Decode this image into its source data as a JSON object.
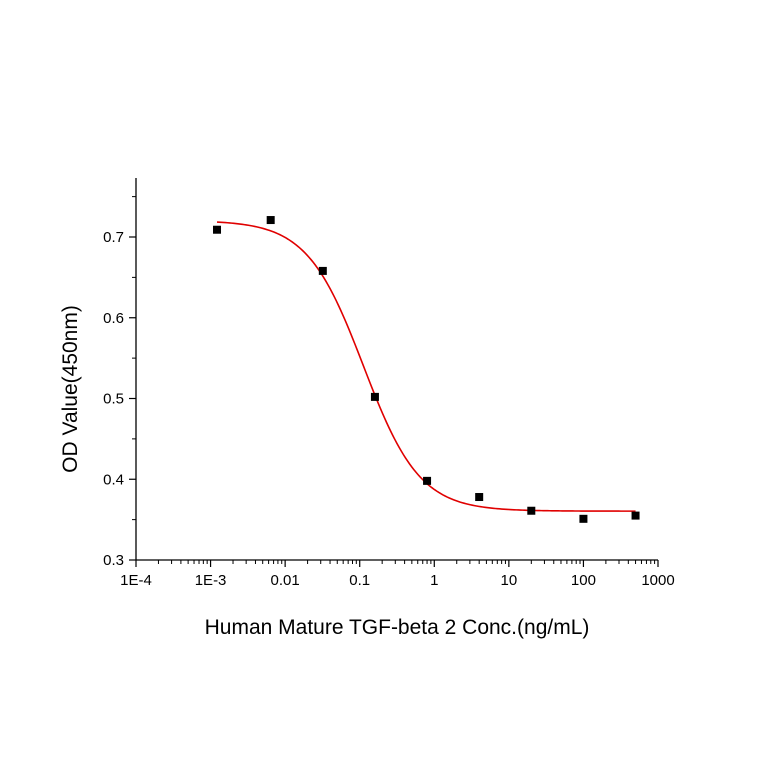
{
  "chart_data": {
    "type": "scatter",
    "title": "",
    "xlabel": "Human Mature TGF-beta 2 Conc.(ng/mL)",
    "ylabel": "OD Value(450nm)",
    "x_scale": "log",
    "xlim": [
      0.0001,
      1000
    ],
    "ylim": [
      0.3,
      0.75
    ],
    "x_ticks": [
      {
        "value": 0.0001,
        "label": "1E-4"
      },
      {
        "value": 0.001,
        "label": "1E-3"
      },
      {
        "value": 0.01,
        "label": "0.01"
      },
      {
        "value": 0.1,
        "label": "0.1"
      },
      {
        "value": 1,
        "label": "1"
      },
      {
        "value": 10,
        "label": "10"
      },
      {
        "value": 100,
        "label": "100"
      },
      {
        "value": 1000,
        "label": "1000"
      }
    ],
    "y_ticks": [
      {
        "value": 0.3,
        "label": "0.3"
      },
      {
        "value": 0.4,
        "label": "0.4"
      },
      {
        "value": 0.5,
        "label": "0.5"
      },
      {
        "value": 0.6,
        "label": "0.6"
      },
      {
        "value": 0.7,
        "label": "0.7"
      }
    ],
    "grid": false,
    "series": [
      {
        "type": "scatter",
        "marker": "square",
        "color": "#000000",
        "x": [
          0.00122,
          0.0064,
          0.032,
          0.16,
          0.8,
          4,
          20,
          100,
          500
        ],
        "y": [
          0.709,
          0.721,
          0.658,
          0.502,
          0.398,
          0.378,
          0.361,
          0.351,
          0.355
        ]
      },
      {
        "type": "line",
        "color": "#e00000",
        "fit": "4PL",
        "top": 0.7205,
        "bottom": 0.3605,
        "ec50": 0.112,
        "hill": 1.15,
        "x_range": [
          0.00122,
          500
        ]
      }
    ]
  }
}
